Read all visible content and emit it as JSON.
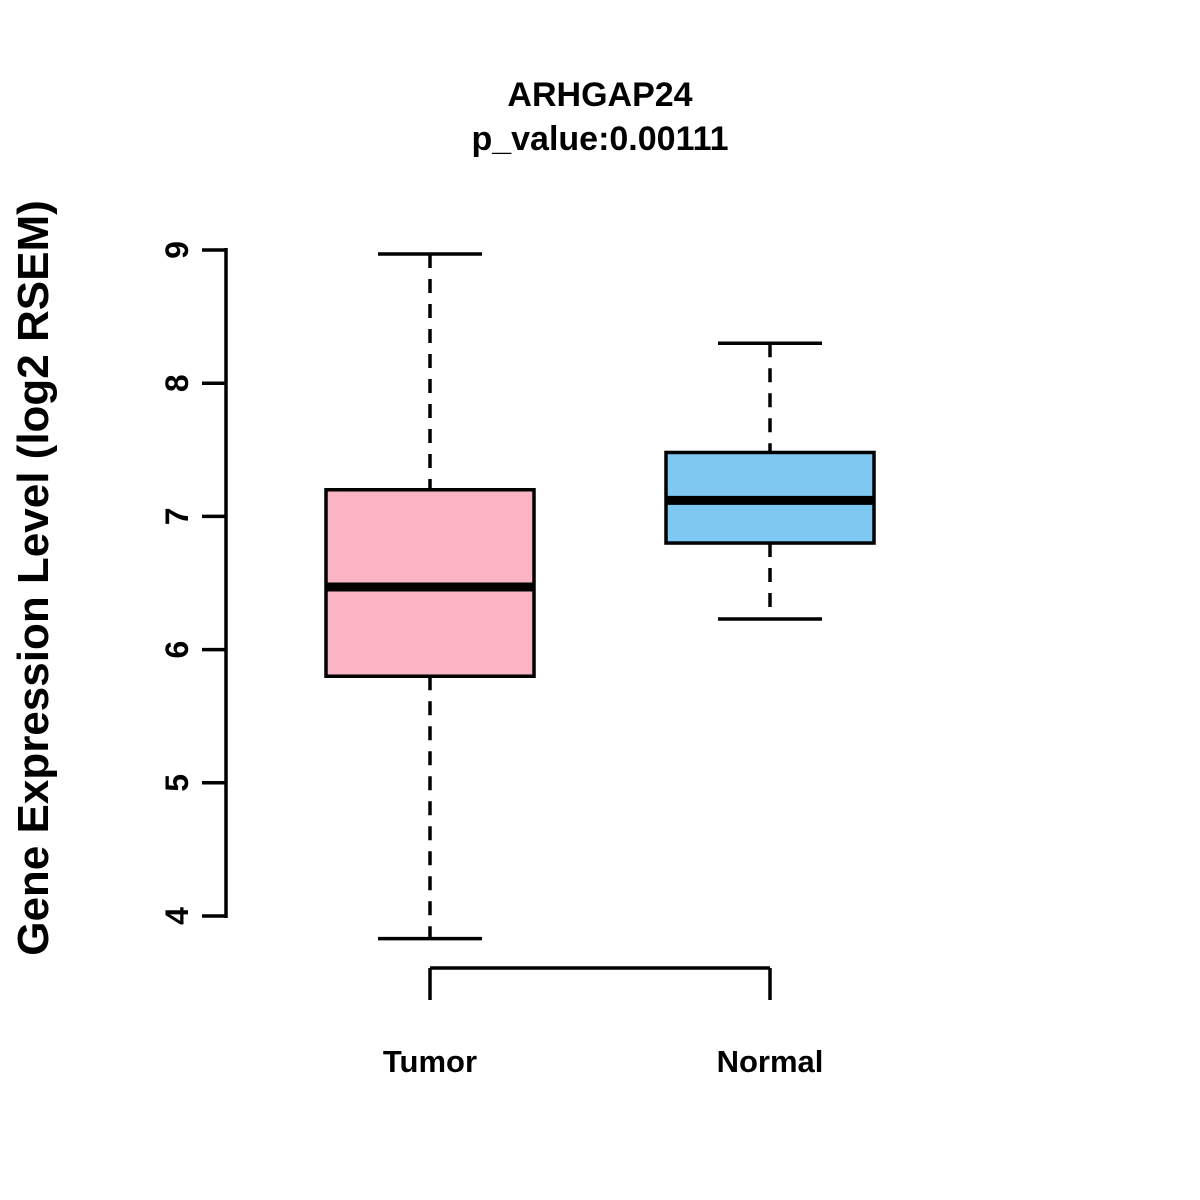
{
  "header": {
    "title": "ARHGAP24",
    "subtitle": "p_value:0.00111"
  },
  "chart_data": {
    "type": "boxplot",
    "title": "ARHGAP24",
    "subtitle": "p_value:0.00111",
    "xlabel": "",
    "ylabel": "Gene Expression Level (log2 RSEM)",
    "ylim": [
      4,
      9
    ],
    "yticks": [
      4,
      5,
      6,
      7,
      8,
      9
    ],
    "ytick_labels": [
      "4",
      "5",
      "6",
      "7",
      "8",
      "9"
    ],
    "categories": [
      "Tumor",
      "Normal"
    ],
    "series": [
      {
        "name": "Tumor",
        "color": "#FBB4C4",
        "whisker_low": 3.83,
        "q1": 5.8,
        "median": 6.47,
        "q3": 7.2,
        "whisker_high": 8.97
      },
      {
        "name": "Normal",
        "color": "#7EC8F2",
        "whisker_low": 6.23,
        "q1": 6.8,
        "median": 7.12,
        "q3": 7.48,
        "whisker_high": 8.3
      }
    ],
    "stroke_color": "#000000",
    "grid": false,
    "legend": "none"
  }
}
